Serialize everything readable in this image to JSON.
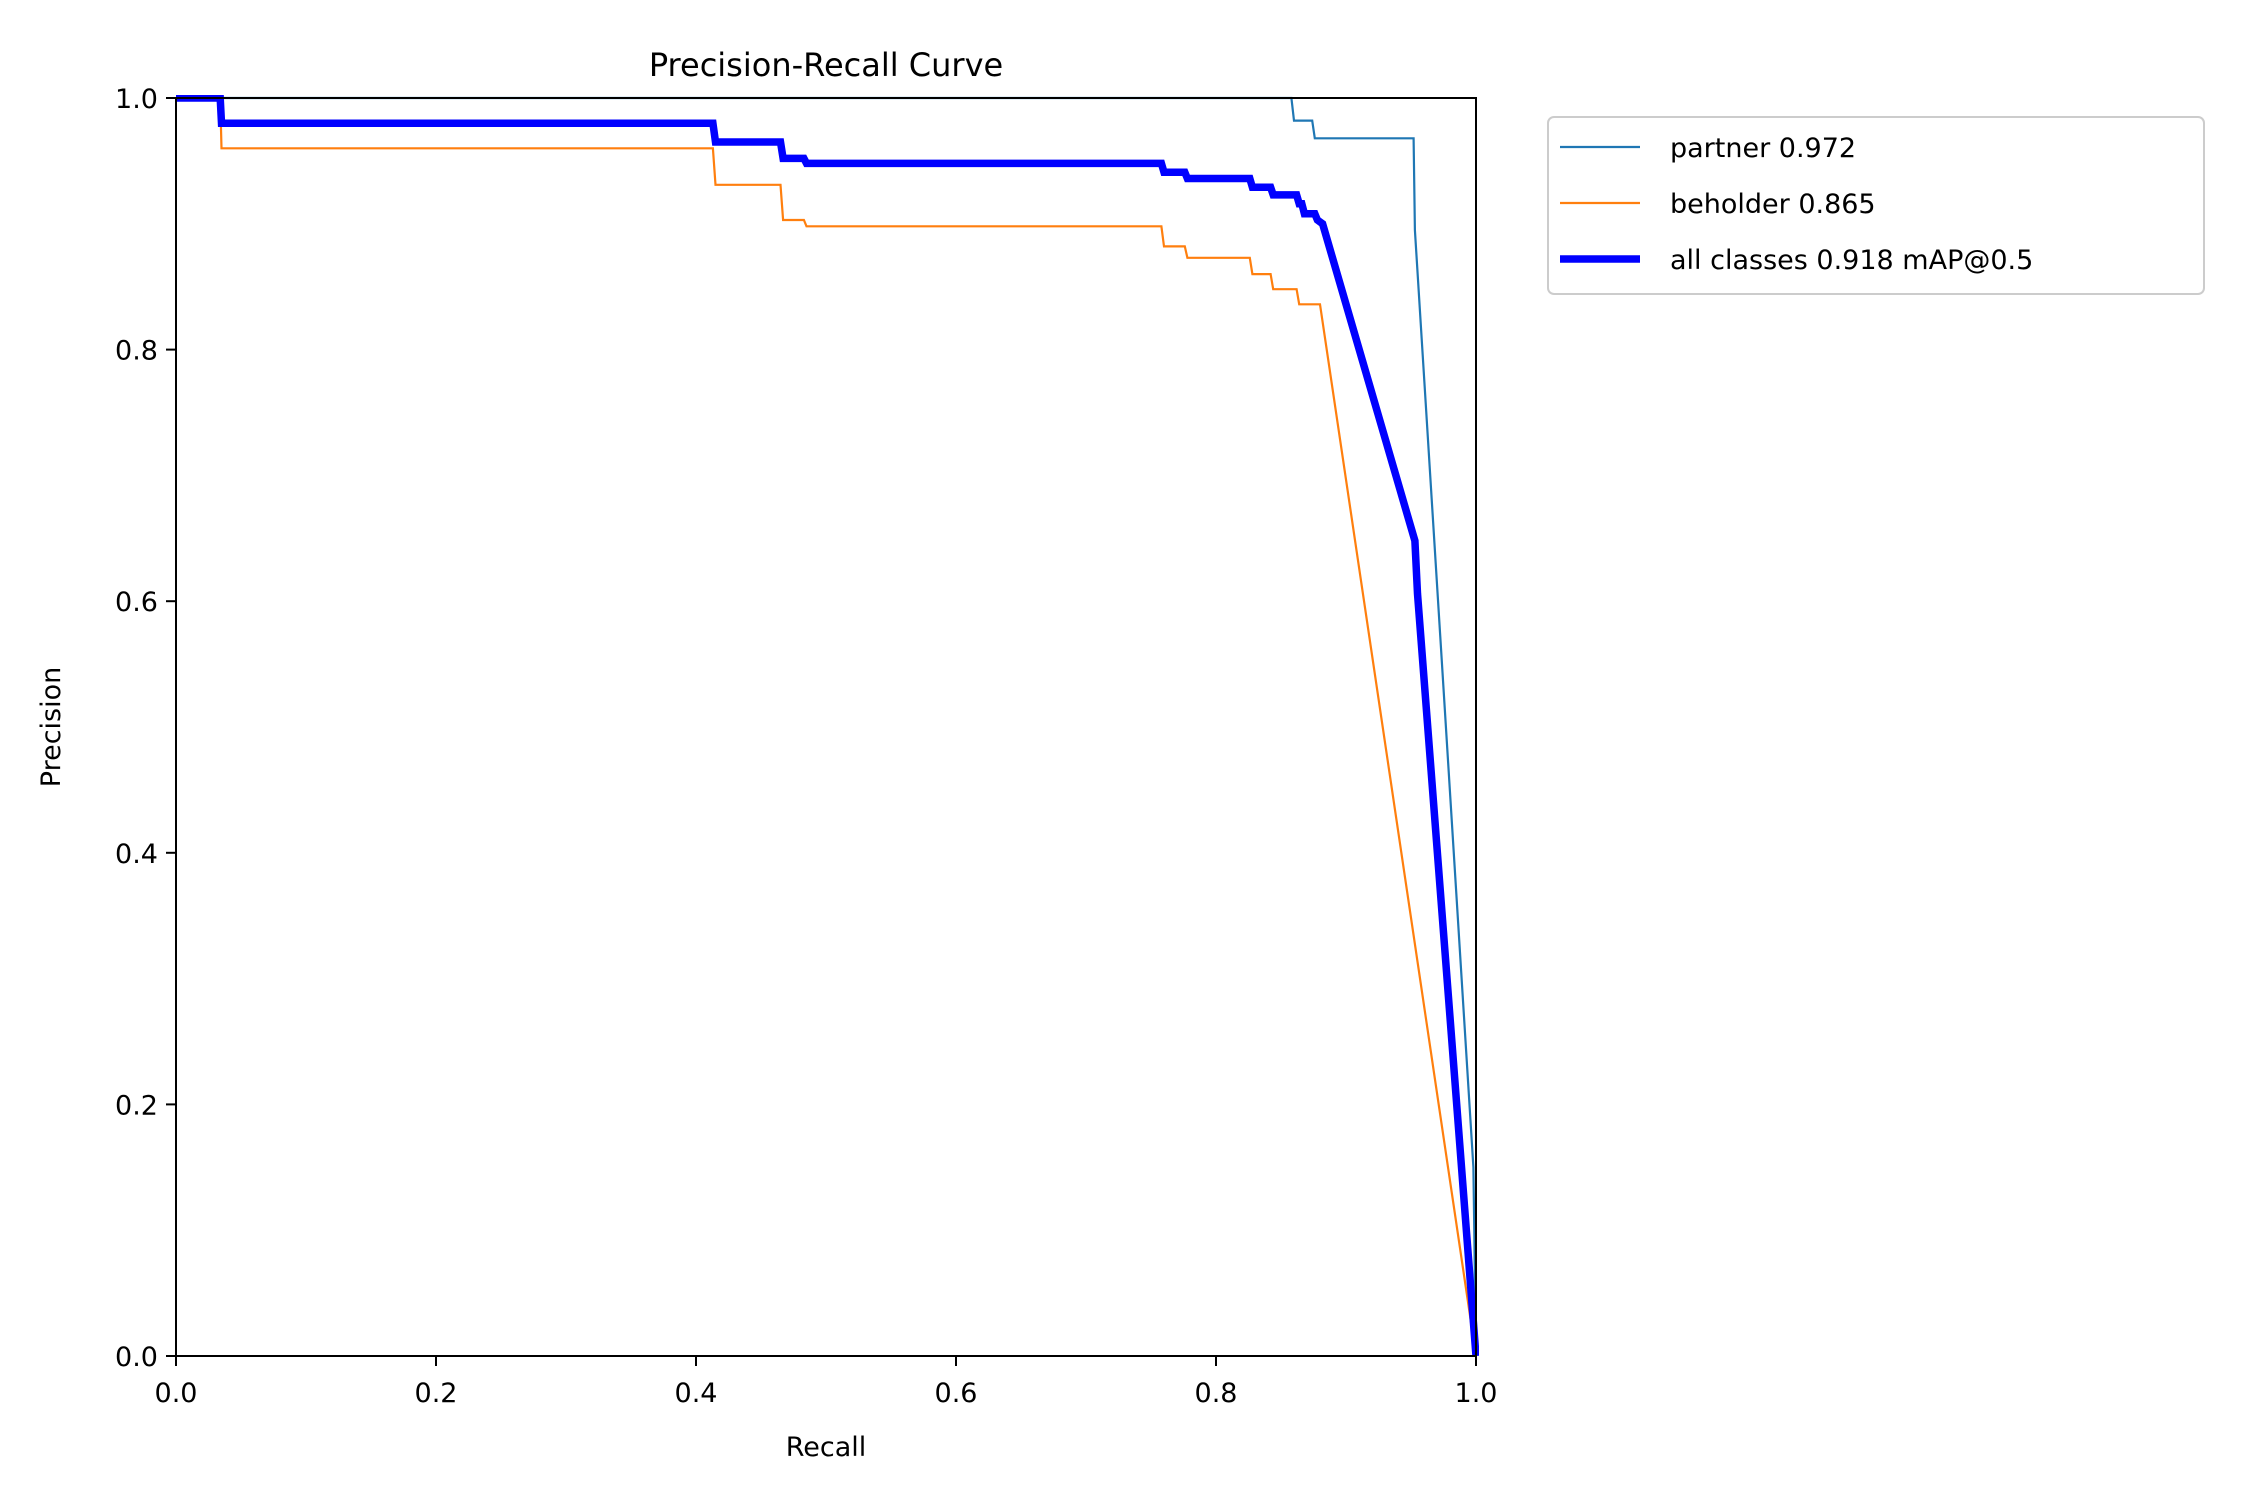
{
  "chart_data": {
    "type": "line",
    "title": "Precision-Recall Curve",
    "xlabel": "Recall",
    "ylabel": "Precision",
    "xlim": [
      0,
      1
    ],
    "ylim": [
      0,
      1
    ],
    "xticks": [
      0.0,
      0.2,
      0.4,
      0.6,
      0.8,
      1.0
    ],
    "yticks": [
      0.0,
      0.2,
      0.4,
      0.6,
      0.8,
      1.0
    ],
    "xtick_labels": [
      "0.0",
      "0.2",
      "0.4",
      "0.6",
      "0.8",
      "1.0"
    ],
    "ytick_labels": [
      "0.0",
      "0.2",
      "0.4",
      "0.6",
      "0.8",
      "1.0"
    ],
    "grid": false,
    "legend_position": "outside-top-right",
    "series": [
      {
        "name": "partner 0.972",
        "color": "#1f77b4",
        "emphasis": "thin",
        "x": [
          0.0,
          0.858,
          0.86,
          0.874,
          0.876,
          0.952,
          0.953,
          0.998,
          1.0
        ],
        "y": [
          1.0,
          1.0,
          0.982,
          0.982,
          0.968,
          0.968,
          0.895,
          0.15,
          0.0
        ]
      },
      {
        "name": "beholder 0.865",
        "color": "#ff7f0e",
        "emphasis": "thin",
        "x": [
          0.0,
          0.034,
          0.035,
          0.413,
          0.415,
          0.465,
          0.467,
          0.483,
          0.485,
          0.758,
          0.76,
          0.776,
          0.778,
          0.826,
          0.828,
          0.842,
          0.844,
          0.862,
          0.864,
          0.88,
          1.0
        ],
        "y": [
          1.0,
          1.0,
          0.96,
          0.96,
          0.931,
          0.931,
          0.903,
          0.903,
          0.898,
          0.898,
          0.882,
          0.882,
          0.873,
          0.873,
          0.86,
          0.86,
          0.848,
          0.848,
          0.836,
          0.836,
          0.0
        ]
      },
      {
        "name": "all classes 0.918 mAP@0.5",
        "color": "#0000ff",
        "emphasis": "thick",
        "x": [
          0.0,
          0.034,
          0.035,
          0.413,
          0.415,
          0.465,
          0.467,
          0.483,
          0.485,
          0.758,
          0.76,
          0.776,
          0.778,
          0.826,
          0.828,
          0.842,
          0.844,
          0.862,
          0.864,
          0.866,
          0.868,
          0.876,
          0.878,
          0.882,
          0.953,
          0.955,
          1.0
        ],
        "y": [
          1.0,
          1.0,
          0.98,
          0.98,
          0.965,
          0.965,
          0.952,
          0.952,
          0.948,
          0.948,
          0.941,
          0.941,
          0.936,
          0.936,
          0.929,
          0.929,
          0.923,
          0.923,
          0.916,
          0.916,
          0.908,
          0.908,
          0.903,
          0.9,
          0.648,
          0.606,
          0.0
        ]
      }
    ]
  }
}
